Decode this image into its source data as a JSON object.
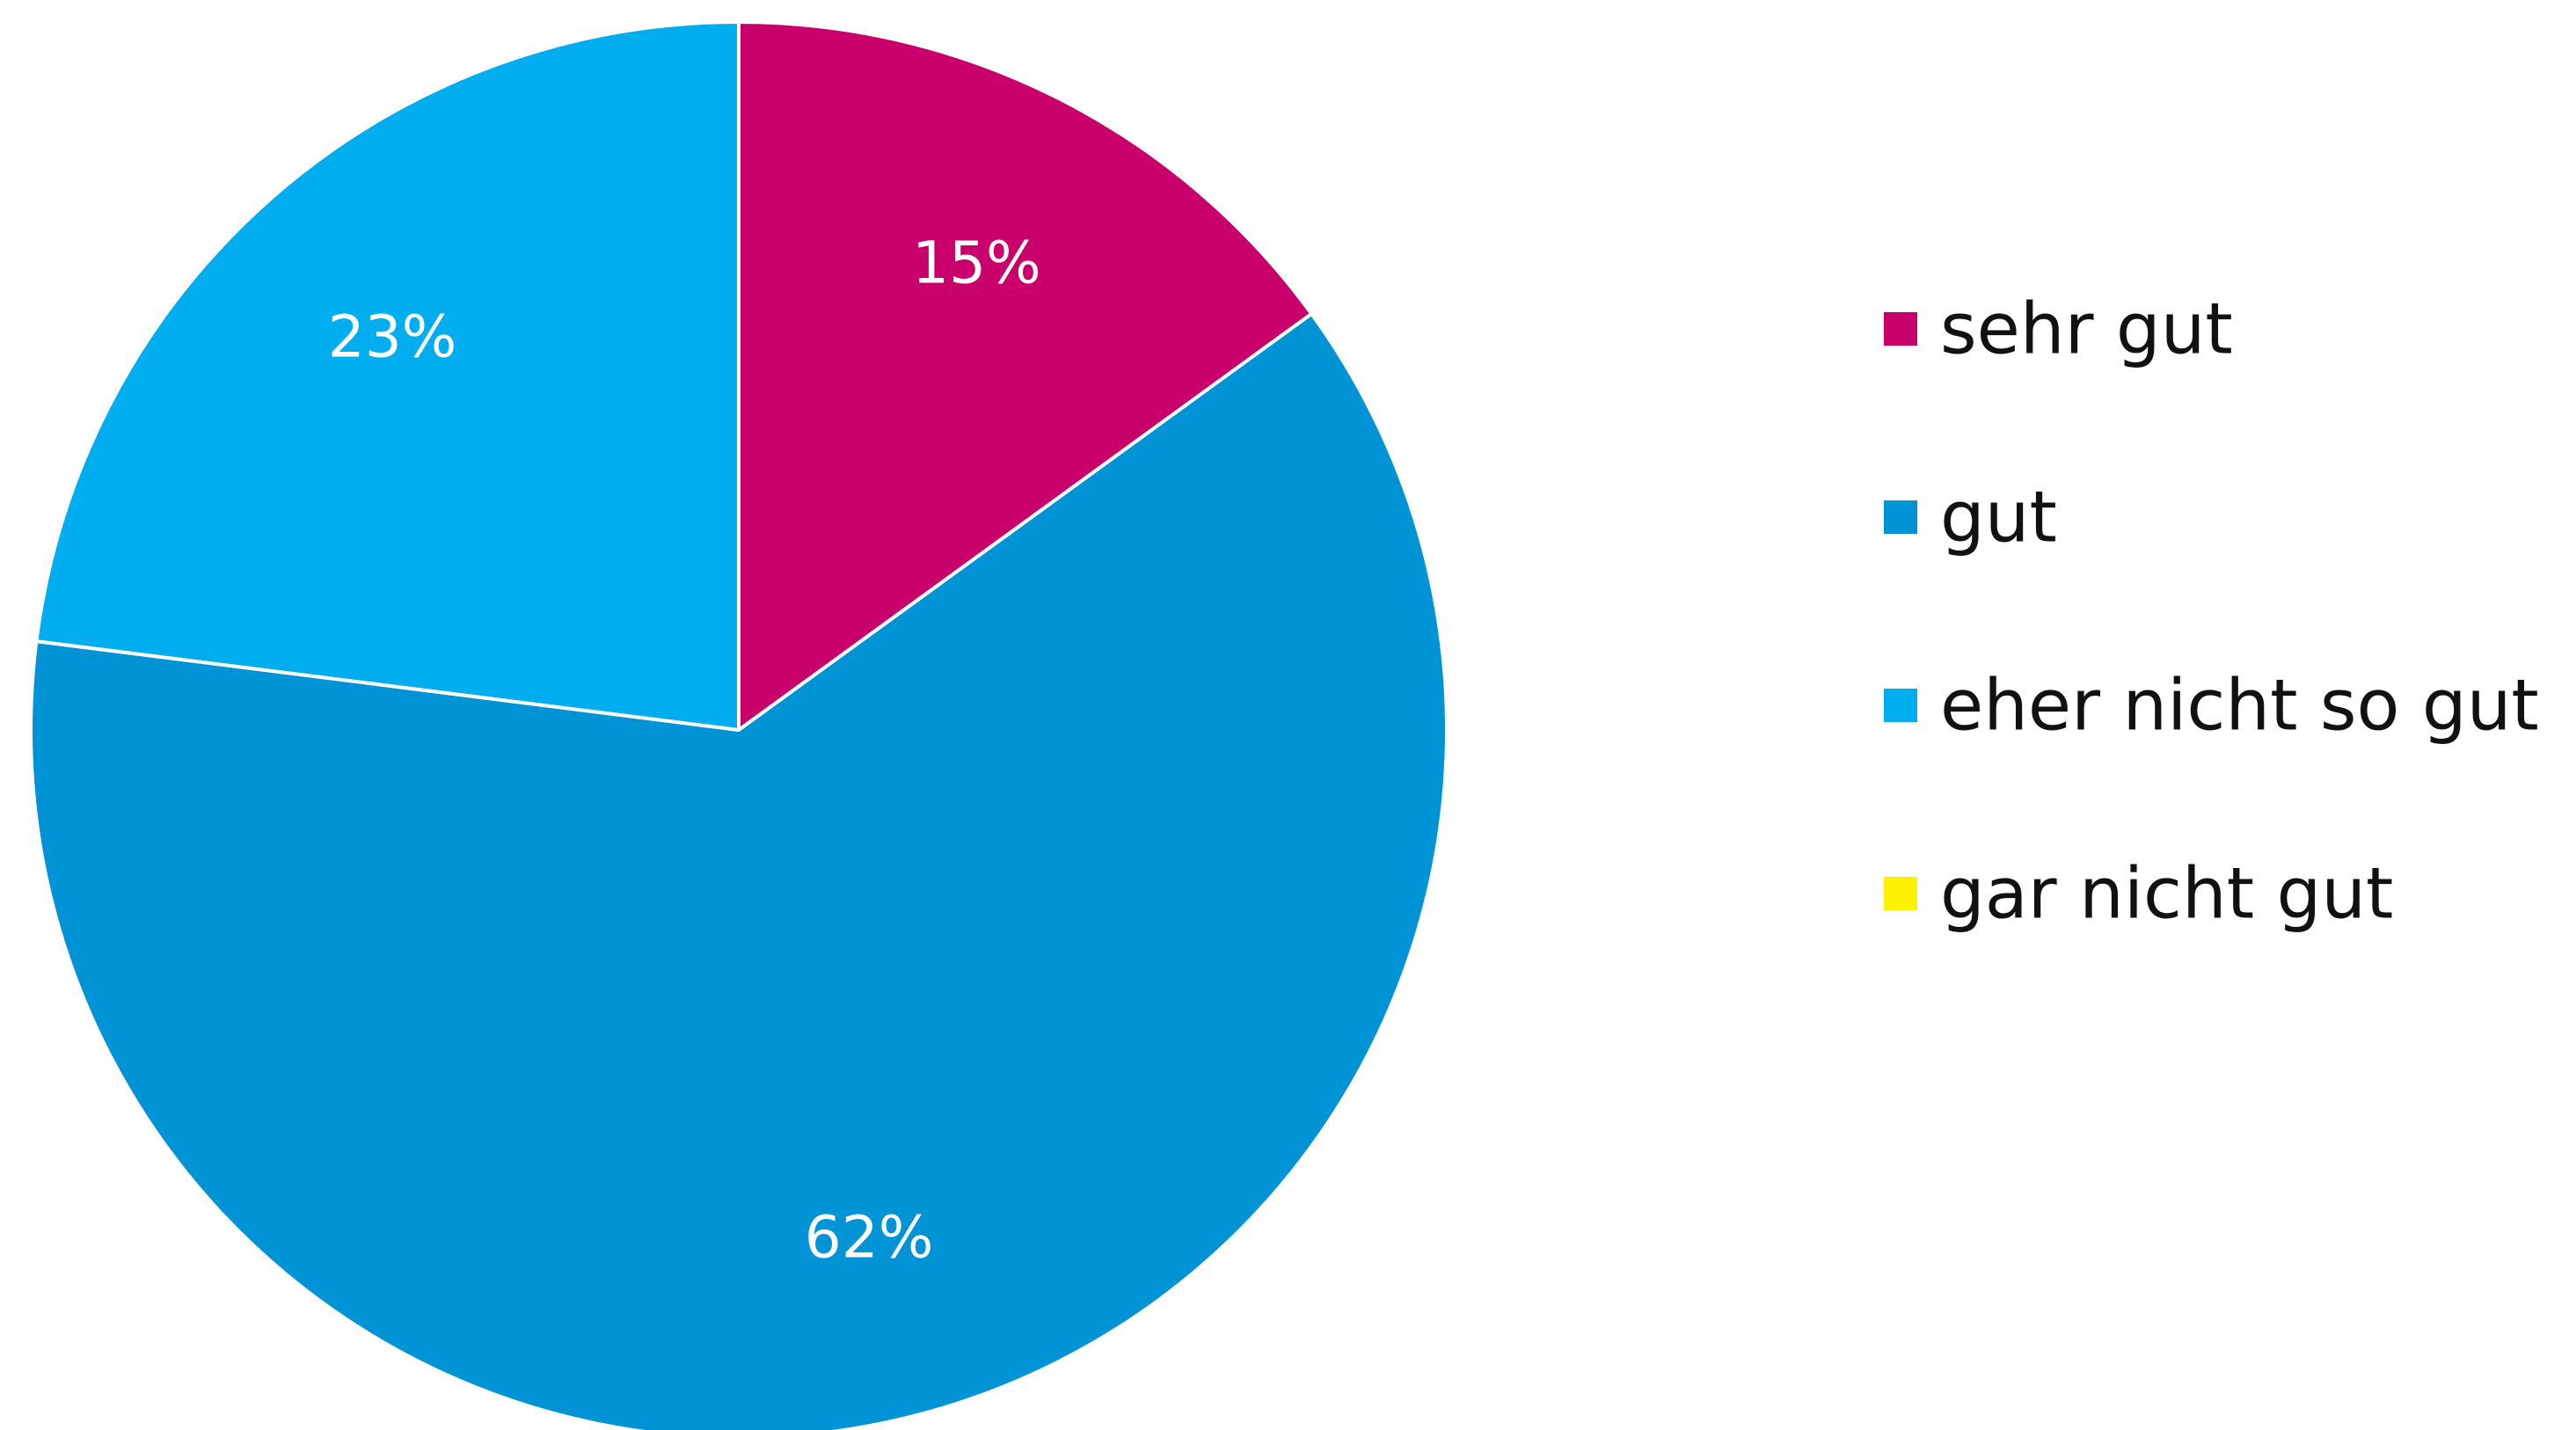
{
  "chart_data": {
    "type": "pie",
    "categories": [
      "sehr gut",
      "gut",
      "eher nicht so gut",
      "gar nicht gut"
    ],
    "values": [
      15,
      62,
      23,
      0
    ],
    "value_labels": [
      "15%",
      "62%",
      "23%",
      ""
    ],
    "colors": [
      "#C9006B",
      "#0093D5",
      "#00AEEF",
      "#FFF200"
    ],
    "start_angle_deg": 0,
    "direction": "clockwise",
    "legend_position": "right",
    "title": ""
  }
}
